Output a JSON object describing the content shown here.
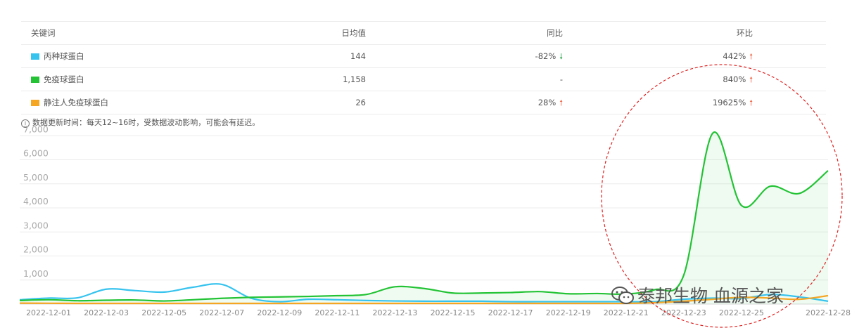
{
  "table": {
    "headers": {
      "keyword": "关键词",
      "avg": "日均值",
      "yoy": "同比",
      "mom": "环比"
    },
    "rows": [
      {
        "keyword": "丙种球蛋白",
        "color": "#36c3ee",
        "avg": "144",
        "yoy": "-82%",
        "yoy_dir": "down",
        "mom": "442%",
        "mom_dir": "up"
      },
      {
        "keyword": "免疫球蛋白",
        "color": "#23c335",
        "avg": "1,158",
        "yoy": "-",
        "yoy_dir": "none",
        "mom": "840%",
        "mom_dir": "up"
      },
      {
        "keyword": "静注人免疫球蛋白",
        "color": "#f5a623",
        "avg": "26",
        "yoy": "28%",
        "yoy_dir": "up",
        "mom": "19625%",
        "mom_dir": "up"
      }
    ]
  },
  "note": "数据更新时间：每天12~16时，受数据波动影响，可能会有延迟。",
  "watermark": "泰邦生物 血源之家",
  "chart_data": {
    "type": "line",
    "x": [
      "2022-11-30",
      "2022-12-01",
      "2022-12-02",
      "2022-12-03",
      "2022-12-04",
      "2022-12-05",
      "2022-12-06",
      "2022-12-07",
      "2022-12-08",
      "2022-12-09",
      "2022-12-10",
      "2022-12-11",
      "2022-12-12",
      "2022-12-13",
      "2022-12-14",
      "2022-12-15",
      "2022-12-16",
      "2022-12-17",
      "2022-12-18",
      "2022-12-19",
      "2022-12-20",
      "2022-12-21",
      "2022-12-22",
      "2022-12-23",
      "2022-12-24",
      "2022-12-25",
      "2022-12-26",
      "2022-12-27",
      "2022-12-28"
    ],
    "x_tick_labels": [
      "2022-12-01",
      "2022-12-03",
      "2022-12-05",
      "2022-12-07",
      "2022-12-09",
      "2022-12-11",
      "2022-12-13",
      "2022-12-15",
      "2022-12-17",
      "2022-12-19",
      "2022-12-21",
      "2022-12-23",
      "2022-12-25",
      "2022-12-28"
    ],
    "y_ticks": [
      1000,
      2000,
      3000,
      4000,
      5000,
      6000,
      7000
    ],
    "y_tick_labels": [
      "1,000",
      "2,000",
      "3,000",
      "4,000",
      "5,000",
      "6,000",
      "7,000"
    ],
    "ylim": [
      0,
      7300
    ],
    "grid": true,
    "series": [
      {
        "name": "丙种球蛋白",
        "color": "#36c3ee",
        "values": [
          180,
          250,
          260,
          620,
          560,
          500,
          700,
          820,
          250,
          100,
          200,
          180,
          150,
          130,
          120,
          120,
          120,
          100,
          100,
          100,
          100,
          100,
          100,
          200,
          250,
          230,
          400,
          300,
          120
        ]
      },
      {
        "name": "免疫球蛋白",
        "color": "#23c335",
        "area": true,
        "values": [
          150,
          180,
          140,
          160,
          170,
          130,
          180,
          240,
          280,
          300,
          320,
          350,
          400,
          720,
          650,
          460,
          460,
          480,
          520,
          430,
          440,
          420,
          600,
          1200,
          7100,
          4100,
          4900,
          4600,
          5550
        ]
      },
      {
        "name": "静注人免疫球蛋白",
        "color": "#f5a623",
        "values": [
          40,
          35,
          30,
          30,
          30,
          30,
          30,
          30,
          30,
          30,
          30,
          30,
          30,
          30,
          30,
          30,
          30,
          30,
          30,
          30,
          30,
          30,
          60,
          120,
          200,
          280,
          250,
          200,
          350
        ]
      }
    ],
    "annotation": "red-dashed-ellipse"
  }
}
